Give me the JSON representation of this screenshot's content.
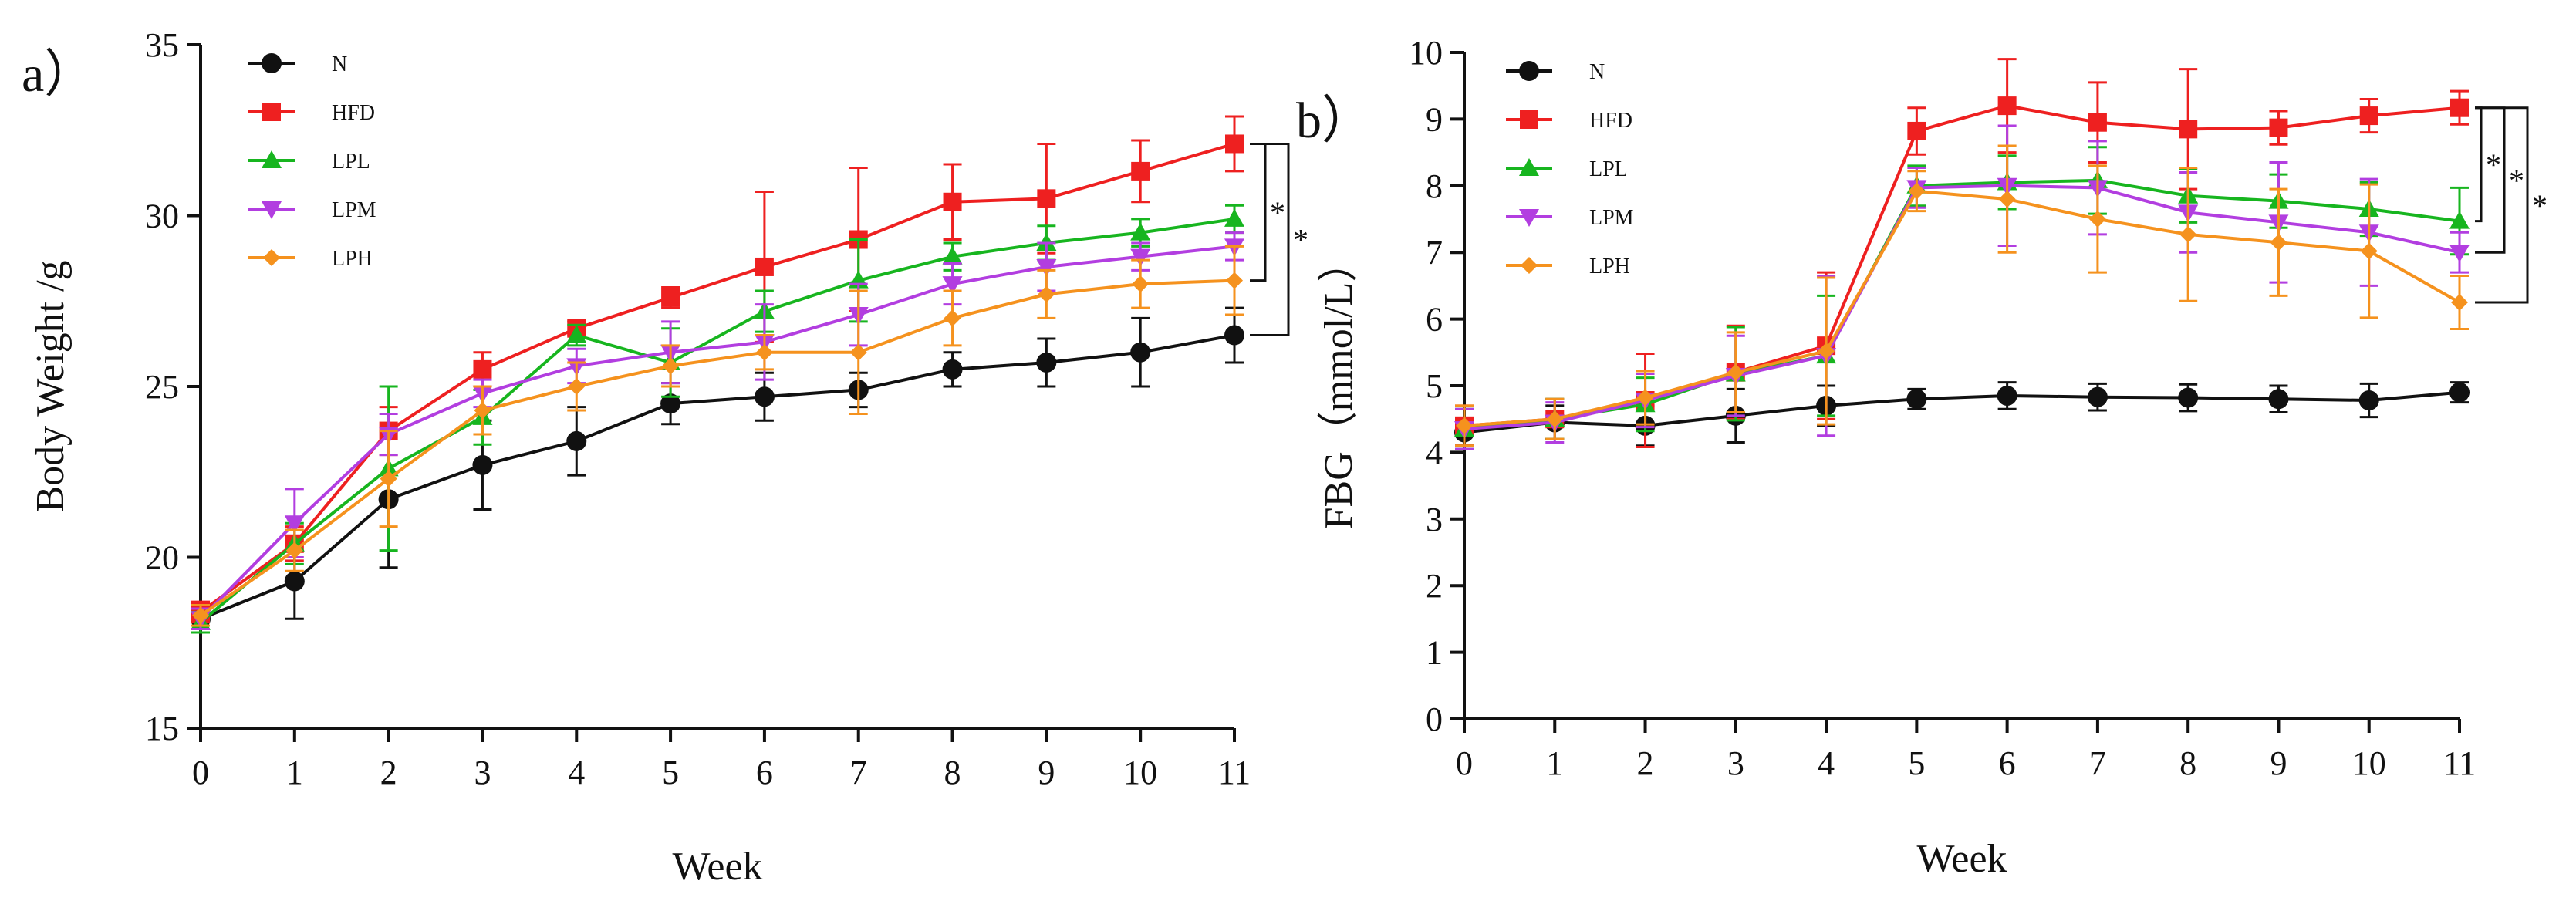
{
  "chart_data": [
    {
      "panel_label": "a）",
      "type": "line",
      "title": "",
      "xlabel": "Week",
      "ylabel": "Body Weight /g",
      "xlim": [
        0,
        11
      ],
      "ylim": [
        15,
        35
      ],
      "x": [
        0,
        1,
        2,
        3,
        4,
        5,
        6,
        7,
        8,
        9,
        10,
        11
      ],
      "xticks": [
        "0",
        "1",
        "2",
        "3",
        "4",
        "5",
        "6",
        "7",
        "8",
        "9",
        "10",
        "11"
      ],
      "yticks": [
        "15",
        "20",
        "25",
        "30",
        "35"
      ],
      "yticks_values": [
        15,
        20,
        25,
        30,
        35
      ],
      "legend": [
        "N",
        "HFD",
        "LPL",
        "LPM",
        "LPH"
      ],
      "series": [
        {
          "name": "N",
          "color": "#111111",
          "marker": "circle",
          "values": [
            18.2,
            19.3,
            21.7,
            22.7,
            23.4,
            24.5,
            24.7,
            24.9,
            25.5,
            25.7,
            26.0,
            26.5
          ],
          "errors": [
            0.3,
            1.1,
            2.0,
            1.3,
            1.0,
            0.6,
            0.7,
            0.5,
            0.5,
            0.7,
            1.0,
            0.8
          ]
        },
        {
          "name": "HFD",
          "color": "#ee2020",
          "marker": "square",
          "values": [
            18.4,
            20.4,
            23.7,
            25.5,
            26.7,
            27.6,
            28.5,
            29.3,
            30.4,
            30.5,
            31.3,
            32.1
          ],
          "errors": [
            0.3,
            0.5,
            0.7,
            0.5,
            0.2,
            0.3,
            2.2,
            2.1,
            1.1,
            1.6,
            0.9,
            0.8
          ]
        },
        {
          "name": "LPL",
          "color": "#17b51f",
          "marker": "triangle-up",
          "values": [
            18.1,
            20.4,
            22.6,
            24.1,
            26.5,
            25.7,
            27.2,
            28.1,
            28.8,
            29.2,
            29.5,
            29.9
          ],
          "errors": [
            0.3,
            0.6,
            2.4,
            0.8,
            0.3,
            1.0,
            0.6,
            1.2,
            0.4,
            0.5,
            0.4,
            0.4
          ]
        },
        {
          "name": "LPM",
          "color": "#b23ee0",
          "marker": "triangle-down",
          "values": [
            18.2,
            21.0,
            23.6,
            24.8,
            25.6,
            26.0,
            26.3,
            27.1,
            28.0,
            28.5,
            28.8,
            29.1
          ],
          "errors": [
            0.3,
            1.0,
            0.6,
            0.4,
            0.5,
            0.9,
            1.1,
            0.9,
            0.6,
            0.7,
            0.4,
            0.4
          ]
        },
        {
          "name": "LPH",
          "color": "#f5921e",
          "marker": "diamond",
          "values": [
            18.3,
            20.2,
            22.3,
            24.3,
            25.0,
            25.6,
            26.0,
            26.0,
            27.0,
            27.7,
            28.0,
            28.1
          ],
          "errors": [
            0.3,
            0.6,
            1.4,
            0.7,
            0.7,
            0.6,
            0.5,
            1.8,
            0.8,
            0.7,
            0.7,
            1.0
          ]
        }
      ],
      "significance": [
        {
          "from": "HFD",
          "to": "LPH",
          "label": "*"
        },
        {
          "from": "HFD",
          "to": "N",
          "label": "*"
        }
      ]
    },
    {
      "panel_label": "b）",
      "type": "line",
      "title": "",
      "xlabel": "Week",
      "ylabel": "FBG（mmol/L）",
      "xlim": [
        0,
        11
      ],
      "ylim": [
        0,
        10
      ],
      "x": [
        0,
        1,
        2,
        3,
        4,
        5,
        6,
        7,
        8,
        9,
        10,
        11
      ],
      "xticks": [
        "0",
        "1",
        "2",
        "3",
        "4",
        "5",
        "6",
        "7",
        "8",
        "9",
        "10",
        "11"
      ],
      "yticks": [
        "0",
        "1",
        "2",
        "3",
        "4",
        "5",
        "6",
        "7",
        "8",
        "9",
        "10"
      ],
      "yticks_values": [
        0,
        1,
        2,
        3,
        4,
        5,
        6,
        7,
        8,
        9,
        10
      ],
      "legend": [
        "N",
        "HFD",
        "LPL",
        "LPM",
        "LPH"
      ],
      "series": [
        {
          "name": "N",
          "color": "#111111",
          "marker": "circle",
          "values": [
            4.3,
            4.45,
            4.4,
            4.55,
            4.7,
            4.8,
            4.85,
            4.83,
            4.82,
            4.8,
            4.78,
            4.9
          ],
          "errors": [
            0.2,
            0.25,
            0.3,
            0.4,
            0.3,
            0.15,
            0.2,
            0.2,
            0.2,
            0.2,
            0.25,
            0.15
          ]
        },
        {
          "name": "HFD",
          "color": "#ee2020",
          "marker": "square",
          "values": [
            4.4,
            4.5,
            4.78,
            5.2,
            5.6,
            8.82,
            9.2,
            8.95,
            8.85,
            8.87,
            9.05,
            9.17
          ],
          "errors": [
            0.3,
            0.3,
            0.7,
            0.7,
            1.1,
            0.35,
            0.7,
            0.6,
            0.9,
            0.25,
            0.25,
            0.25
          ]
        },
        {
          "name": "LPL",
          "color": "#17b51f",
          "marker": "triangle-up",
          "values": [
            4.35,
            4.5,
            4.72,
            5.18,
            5.45,
            8.0,
            8.05,
            8.08,
            7.85,
            7.77,
            7.65,
            7.47
          ],
          "errors": [
            0.3,
            0.3,
            0.4,
            0.7,
            0.9,
            0.3,
            0.4,
            0.5,
            0.4,
            0.4,
            0.4,
            0.5
          ]
        },
        {
          "name": "LPM",
          "color": "#b23ee0",
          "marker": "triangle-down",
          "values": [
            4.35,
            4.45,
            4.78,
            5.15,
            5.45,
            7.97,
            8.0,
            7.97,
            7.6,
            7.45,
            7.3,
            7.0
          ],
          "errors": [
            0.3,
            0.3,
            0.4,
            0.6,
            1.2,
            0.3,
            0.9,
            0.7,
            0.6,
            0.9,
            0.8,
            0.3
          ]
        },
        {
          "name": "LPH",
          "color": "#f5921e",
          "marker": "diamond",
          "values": [
            4.4,
            4.5,
            4.82,
            5.2,
            5.52,
            7.92,
            7.8,
            7.5,
            7.27,
            7.15,
            7.02,
            6.25
          ],
          "errors": [
            0.3,
            0.3,
            0.4,
            0.6,
            1.1,
            0.3,
            0.8,
            0.8,
            1.0,
            0.8,
            1.0,
            0.4
          ]
        }
      ],
      "significance": [
        {
          "from": "HFD",
          "to": "LPL",
          "label": "*"
        },
        {
          "from": "HFD",
          "to": "LPM",
          "label": "*"
        },
        {
          "from": "HFD",
          "to": "LPH",
          "label": "*"
        }
      ]
    }
  ]
}
